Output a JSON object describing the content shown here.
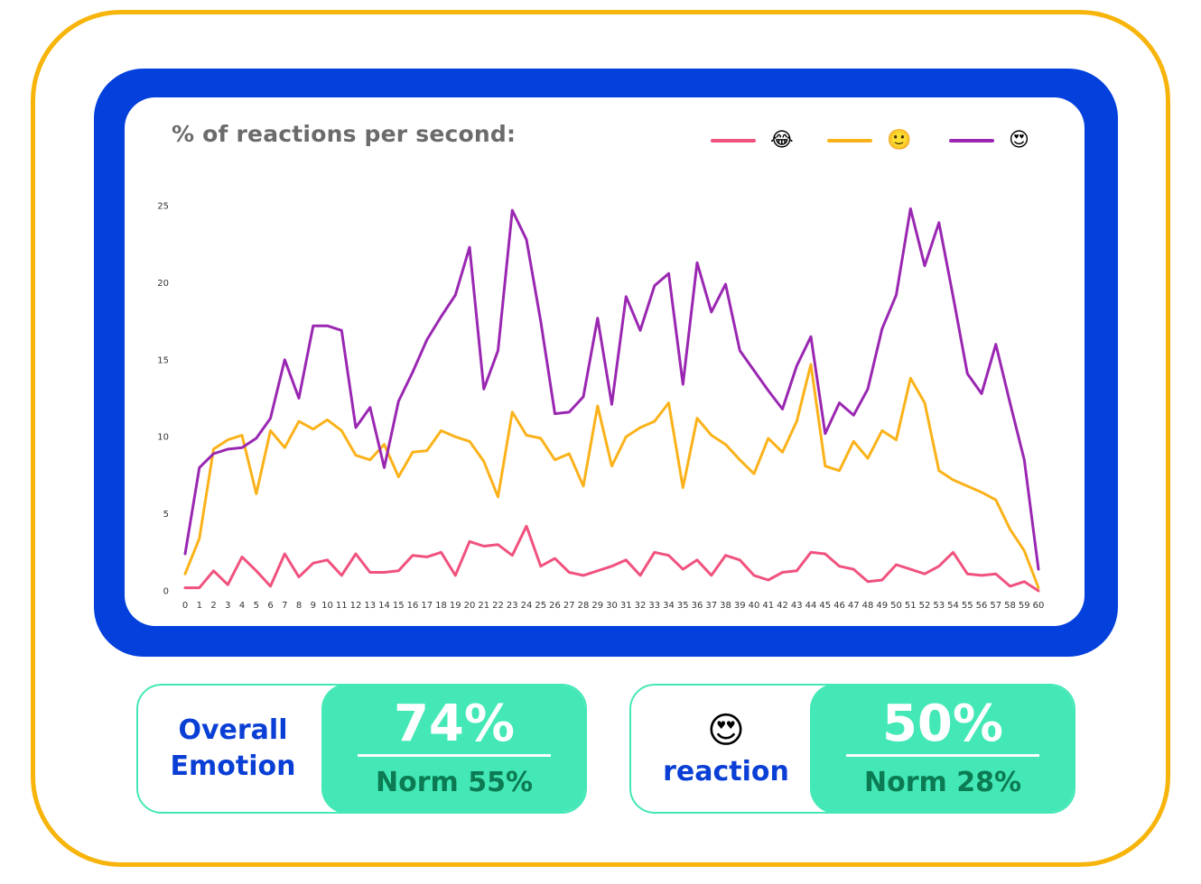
{
  "chart_data": {
    "type": "line",
    "title": "% of reactions per second:",
    "xlabel": "",
    "ylabel": "",
    "x": [
      0,
      1,
      2,
      3,
      4,
      5,
      6,
      7,
      8,
      9,
      10,
      11,
      12,
      13,
      14,
      15,
      16,
      17,
      18,
      19,
      20,
      21,
      22,
      23,
      24,
      25,
      26,
      27,
      28,
      29,
      30,
      31,
      32,
      33,
      34,
      35,
      36,
      37,
      38,
      39,
      40,
      41,
      42,
      43,
      44,
      45,
      46,
      47,
      48,
      49,
      50,
      51,
      52,
      53,
      54,
      55,
      56,
      57,
      58,
      59,
      60
    ],
    "yticks": [
      0,
      5,
      10,
      15,
      20,
      25
    ],
    "ylim": [
      0,
      25
    ],
    "grid": false,
    "legend_position": "top-right",
    "series": [
      {
        "name": "😂",
        "color": "#f0527e",
        "values": [
          0.2,
          0.2,
          1.3,
          0.4,
          2.2,
          1.3,
          0.3,
          2.4,
          0.9,
          1.8,
          2.0,
          1.0,
          2.4,
          1.2,
          1.2,
          1.3,
          2.3,
          2.2,
          2.5,
          1.0,
          3.2,
          2.9,
          3.0,
          2.3,
          4.2,
          1.6,
          2.1,
          1.2,
          1.0,
          1.3,
          1.6,
          2.0,
          1.0,
          2.5,
          2.3,
          1.4,
          2.0,
          1.0,
          2.3,
          2.0,
          1.0,
          0.7,
          1.2,
          1.3,
          2.5,
          2.4,
          1.6,
          1.4,
          0.6,
          0.7,
          1.7,
          1.4,
          1.1,
          1.6,
          2.5,
          1.1,
          1.0,
          1.1,
          0.3,
          0.6,
          0.0
        ]
      },
      {
        "name": "🙂",
        "color": "#fbb21a",
        "values": [
          1.1,
          3.4,
          9.2,
          9.8,
          10.1,
          6.3,
          10.4,
          9.3,
          11.0,
          10.5,
          11.1,
          10.4,
          8.8,
          8.5,
          9.5,
          7.4,
          9.0,
          9.1,
          10.4,
          10.0,
          9.7,
          8.4,
          6.1,
          11.6,
          10.1,
          9.9,
          8.5,
          8.9,
          6.8,
          12.0,
          8.1,
          10.0,
          10.6,
          11.0,
          12.2,
          6.7,
          11.2,
          10.1,
          9.5,
          8.5,
          7.6,
          9.9,
          9.0,
          11.0,
          14.7,
          8.1,
          7.8,
          9.7,
          8.6,
          10.4,
          9.8,
          13.8,
          12.2,
          7.8,
          7.2,
          6.8,
          6.4,
          5.9,
          4.0,
          2.6,
          0.2
        ]
      },
      {
        "name": "😍",
        "color": "#9a27b2",
        "values": [
          2.4,
          8.0,
          8.9,
          9.2,
          9.3,
          9.9,
          11.2,
          15.0,
          12.5,
          17.2,
          17.2,
          16.9,
          10.6,
          11.9,
          8.0,
          12.3,
          14.2,
          16.3,
          17.8,
          19.2,
          22.3,
          13.1,
          15.6,
          24.7,
          22.8,
          17.5,
          11.5,
          11.6,
          12.6,
          17.7,
          12.1,
          19.1,
          16.9,
          19.8,
          20.6,
          13.4,
          21.3,
          18.1,
          19.9,
          15.6,
          14.3,
          13.0,
          11.8,
          14.6,
          16.5,
          10.2,
          12.2,
          11.4,
          13.1,
          17.0,
          19.2,
          24.8,
          21.1,
          23.9,
          19.1,
          14.1,
          12.8,
          16.0,
          12.2,
          8.5,
          1.4
        ]
      }
    ]
  },
  "stats": {
    "overall": {
      "label_line1": "Overall",
      "label_line2": "Emotion",
      "value": "74%",
      "norm": "Norm 55%"
    },
    "reaction": {
      "emoji": "😍",
      "label": "reaction",
      "value": "50%",
      "norm": "Norm 28%"
    }
  },
  "colors": {
    "outer_frame": "#f7b40a",
    "blue_frame": "#0340dc",
    "accent_green": "#43e8b6",
    "label_blue": "#0a3fd6",
    "norm_text": "#0c7a52"
  }
}
